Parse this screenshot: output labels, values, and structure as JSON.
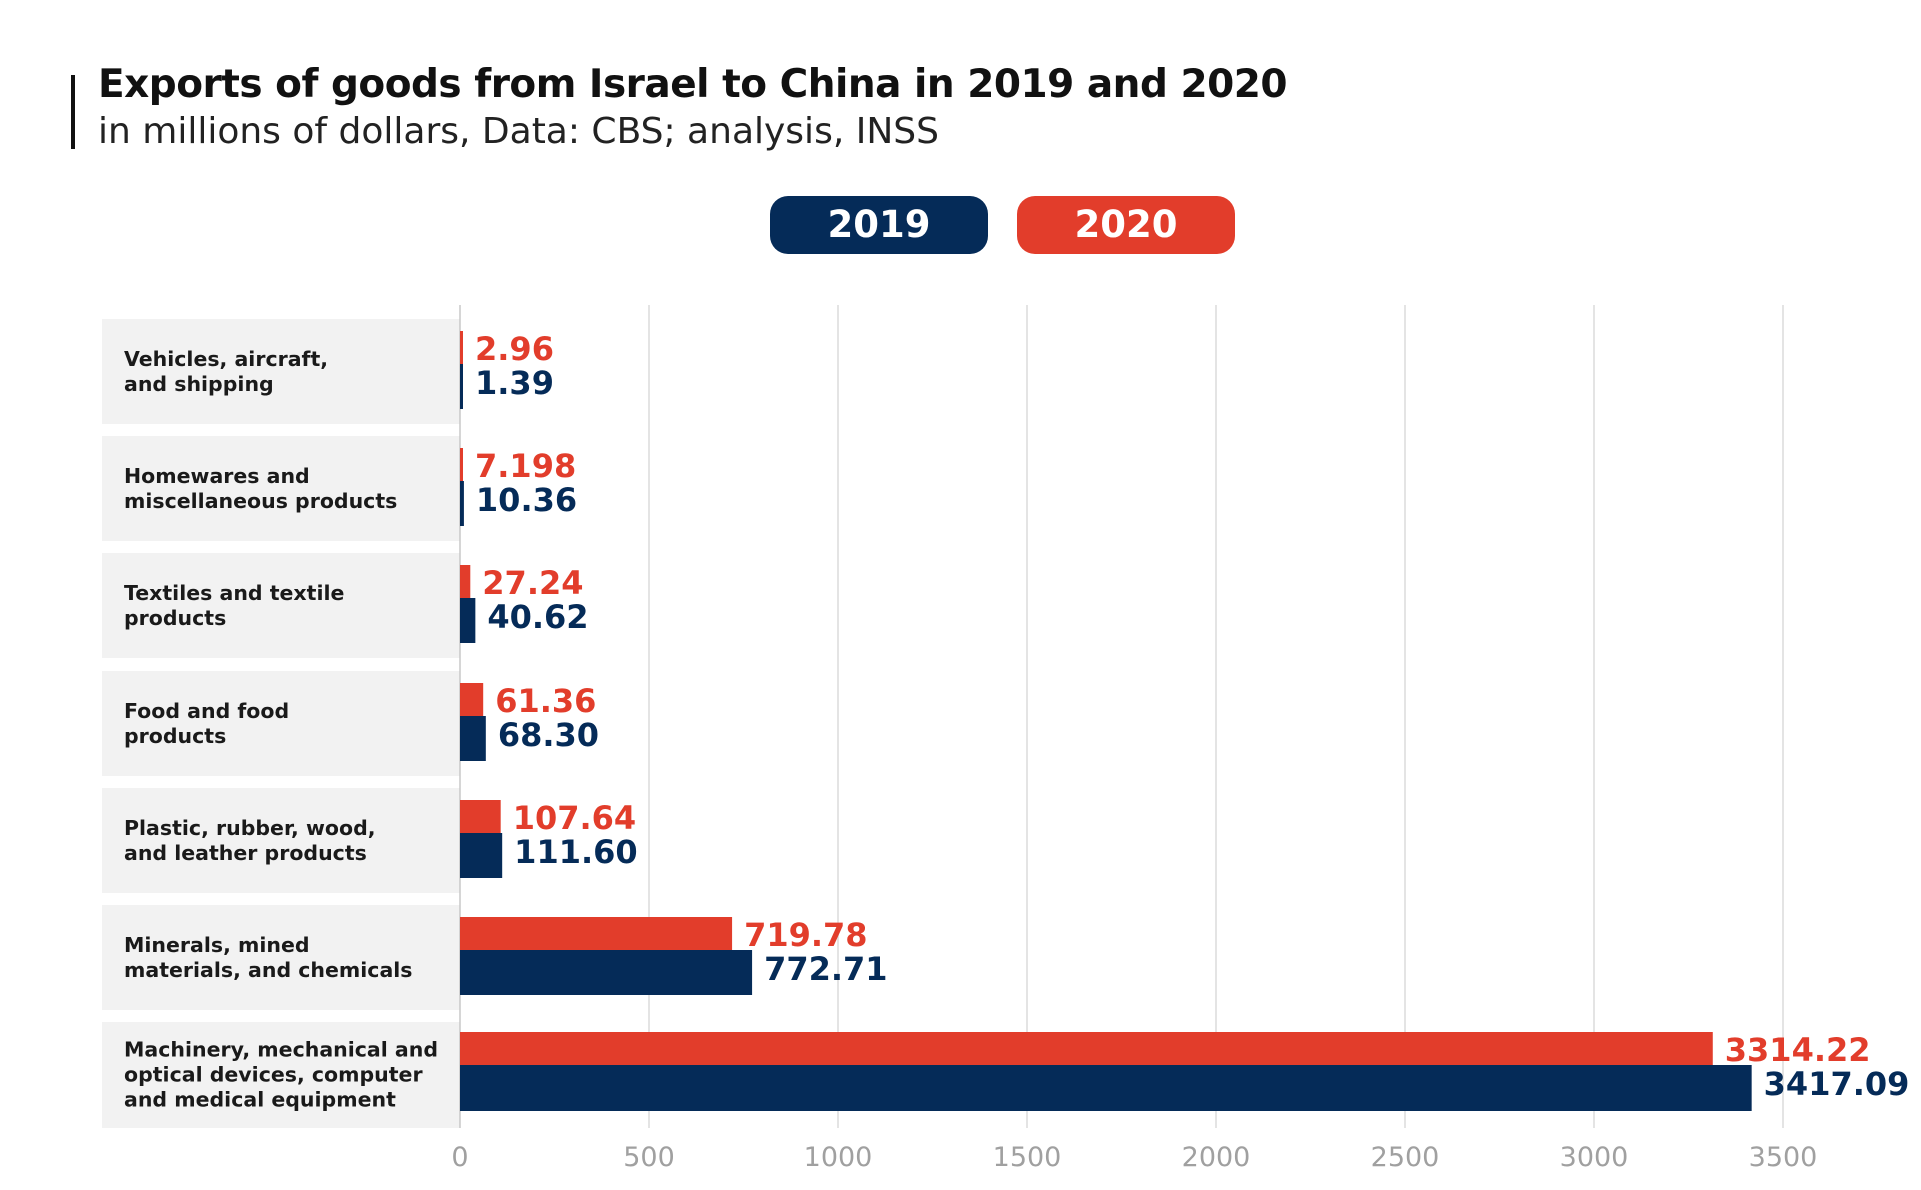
{
  "header": {
    "title": "Exports of goods from Israel to China in 2019 and 2020",
    "subtitle": "in millions of dollars, Data: CBS; analysis, INSS"
  },
  "legend": [
    {
      "label": "2019",
      "color": "#052b58"
    },
    {
      "label": "2020",
      "color": "#e23d2b"
    }
  ],
  "chart_data": {
    "type": "bar",
    "orientation": "horizontal",
    "title": "Exports of goods from Israel to China in 2019 and 2020",
    "subtitle": "in millions of dollars, Data: CBS; analysis, INSS",
    "categories": [
      "Vehicles, aircraft,\nand shipping",
      "Homewares and\nmiscellaneous products",
      "Textiles and textile\nproducts",
      "Food and food\nproducts",
      "Plastic, rubber, wood,\nand leather products",
      "Minerals, mined\nmaterials, and chemicals",
      "Machinery, mechanical and\noptical devices, computer\nand medical equipment"
    ],
    "series": [
      {
        "name": "2020",
        "color": "#e23d2b",
        "values": [
          2.96,
          7.198,
          27.24,
          61.36,
          107.64,
          719.78,
          3314.22
        ],
        "labels": [
          "2.96",
          "7.198",
          "27.24",
          "61.36",
          "107.64",
          "719.78",
          "3314.22"
        ]
      },
      {
        "name": "2019",
        "color": "#052b58",
        "values": [
          1.39,
          10.36,
          40.62,
          68.3,
          111.6,
          772.71,
          3417.09
        ],
        "labels": [
          "1.39",
          "10.36",
          "40.62",
          "68.30",
          "111.60",
          "772.71",
          "3417.09"
        ]
      }
    ],
    "xlim": [
      0,
      3500
    ],
    "xticks": [
      "0",
      "500",
      "1000",
      "1500",
      "2000",
      "2500",
      "3000",
      "3500"
    ],
    "grid": true
  }
}
